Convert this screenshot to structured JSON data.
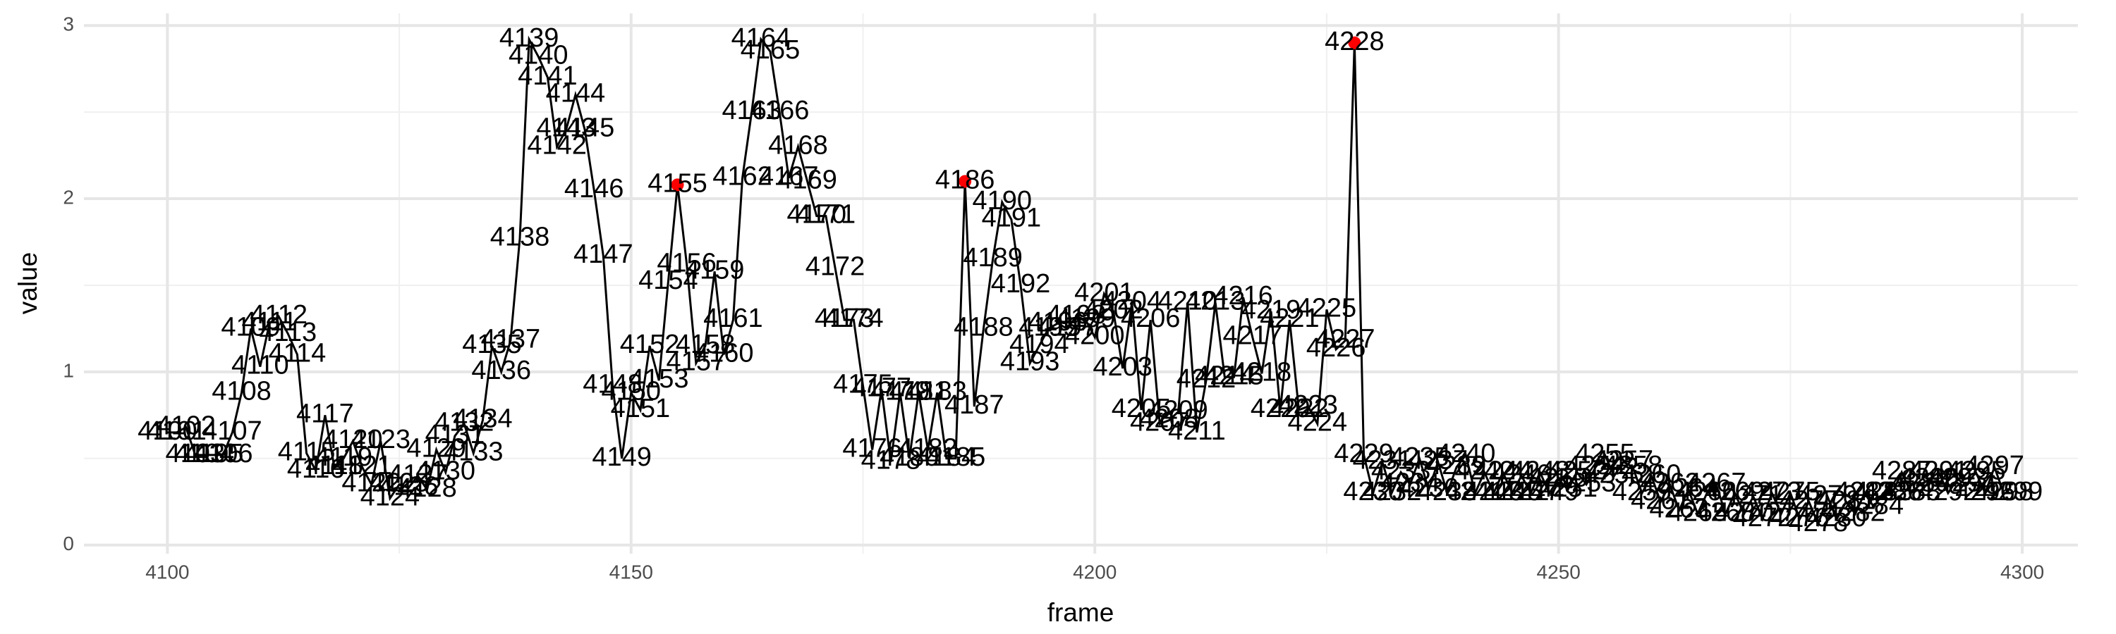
{
  "chart_data": {
    "type": "line",
    "x_label": "frame",
    "y_label": "value",
    "color": "#000000",
    "x": [
      4100,
      4101,
      4102,
      4103,
      4104,
      4105,
      4106,
      4107,
      4108,
      4109,
      4110,
      4111,
      4112,
      4113,
      4114,
      4115,
      4116,
      4117,
      4118,
      4119,
      4120,
      4121,
      4122,
      4123,
      4124,
      4125,
      4126,
      4127,
      4128,
      4129,
      4130,
      4131,
      4132,
      4133,
      4134,
      4135,
      4136,
      4137,
      4138,
      4139,
      4140,
      4141,
      4142,
      4143,
      4144,
      4145,
      4146,
      4147,
      4148,
      4149,
      4150,
      4151,
      4152,
      4153,
      4154,
      4155,
      4156,
      4157,
      4158,
      4159,
      4160,
      4161,
      4162,
      4163,
      4164,
      4165,
      4166,
      4167,
      4168,
      4169,
      4170,
      4171,
      4172,
      4173,
      4174,
      4175,
      4176,
      4177,
      4178,
      4179,
      4180,
      4181,
      4182,
      4183,
      4184,
      4185,
      4186,
      4187,
      4188,
      4189,
      4190,
      4191,
      4192,
      4193,
      4194,
      4195,
      4196,
      4197,
      4198,
      4199,
      4200,
      4201,
      4202,
      4203,
      4204,
      4205,
      4206,
      4207,
      4208,
      4209,
      4210,
      4211,
      4212,
      4213,
      4214,
      4215,
      4216,
      4217,
      4218,
      4219,
      4220,
      4221,
      4222,
      4223,
      4224,
      4225,
      4226,
      4227,
      4228,
      4229,
      4230,
      4231,
      4232,
      4233,
      4234,
      4235,
      4236,
      4237,
      4238,
      4239,
      4240,
      4241,
      4242,
      4243,
      4244,
      4245,
      4246,
      4247,
      4248,
      4249,
      4250,
      4251,
      4252,
      4253,
      4254,
      4255,
      4256,
      4257,
      4258,
      4259,
      4260,
      4261,
      4262,
      4263,
      4264,
      4265,
      4266,
      4267,
      4268,
      4269,
      4270,
      4271,
      4272,
      4273,
      4274,
      4275,
      4276,
      4277,
      4278,
      4279,
      4280,
      4281,
      4282,
      4283,
      4284,
      4285,
      4286,
      4287,
      4288,
      4289,
      4290,
      4291,
      4292,
      4293,
      4294,
      4295,
      4296,
      4297,
      4298,
      4299
    ],
    "values": [
      0.65,
      0.65,
      0.68,
      0.52,
      0.52,
      0.52,
      0.52,
      0.65,
      0.88,
      1.25,
      1.03,
      1.28,
      1.32,
      1.22,
      1.1,
      0.53,
      0.43,
      0.75,
      0.45,
      0.5,
      0.6,
      0.45,
      0.35,
      0.6,
      0.27,
      0.35,
      0.33,
      0.4,
      0.32,
      0.55,
      0.42,
      0.63,
      0.7,
      0.53,
      0.72,
      1.15,
      1.0,
      1.18,
      1.77,
      2.92,
      2.82,
      2.7,
      2.3,
      2.4,
      2.6,
      2.4,
      2.05,
      1.67,
      0.92,
      0.5,
      0.88,
      0.78,
      1.15,
      0.95,
      1.52,
      2.08,
      1.62,
      1.05,
      1.15,
      1.58,
      1.1,
      1.3,
      2.12,
      2.5,
      2.92,
      2.85,
      2.5,
      2.12,
      2.3,
      2.1,
      1.9,
      1.9,
      1.6,
      1.3,
      1.3,
      0.92,
      0.55,
      0.9,
      0.48,
      0.88,
      0.5,
      0.88,
      0.55,
      0.88,
      0.5,
      0.5,
      2.1,
      0.8,
      1.25,
      1.65,
      1.98,
      1.88,
      1.5,
      1.05,
      1.15,
      1.25,
      1.28,
      1.25,
      1.32,
      1.3,
      1.2,
      1.45,
      1.35,
      1.02,
      1.4,
      0.78,
      1.3,
      0.7,
      0.72,
      0.77,
      1.4,
      0.65,
      0.95,
      1.4,
      0.97,
      0.97,
      1.43,
      1.2,
      0.99,
      1.35,
      0.78,
      1.3,
      0.78,
      0.8,
      0.7,
      1.36,
      1.13,
      1.18,
      2.9,
      0.52,
      0.3,
      0.48,
      0.3,
      0.42,
      0.35,
      0.5,
      0.32,
      0.48,
      0.3,
      0.45,
      0.52,
      0.3,
      0.42,
      0.3,
      0.42,
      0.3,
      0.4,
      0.3,
      0.42,
      0.3,
      0.38,
      0.32,
      0.42,
      0.35,
      0.45,
      0.52,
      0.4,
      0.48,
      0.45,
      0.3,
      0.4,
      0.25,
      0.35,
      0.2,
      0.32,
      0.18,
      0.3,
      0.35,
      0.18,
      0.3,
      0.18,
      0.28,
      0.15,
      0.3,
      0.18,
      0.3,
      0.15,
      0.25,
      0.12,
      0.28,
      0.15,
      0.25,
      0.18,
      0.3,
      0.22,
      0.3,
      0.3,
      0.42,
      0.3,
      0.35,
      0.38,
      0.42,
      0.3,
      0.38,
      0.35,
      0.42,
      0.3,
      0.45,
      0.3,
      0.3
    ],
    "highlights": {
      "color": "#ff0000",
      "x": [
        4155,
        4186,
        4228
      ],
      "values": [
        2.08,
        2.1,
        2.9
      ]
    },
    "xlim": [
      4091,
      4306
    ],
    "ylim": [
      -0.05,
      3.07
    ],
    "xticks": [
      4100,
      4150,
      4200,
      4250,
      4300
    ],
    "yticks": [
      0,
      1,
      2,
      3
    ],
    "grid": true
  }
}
